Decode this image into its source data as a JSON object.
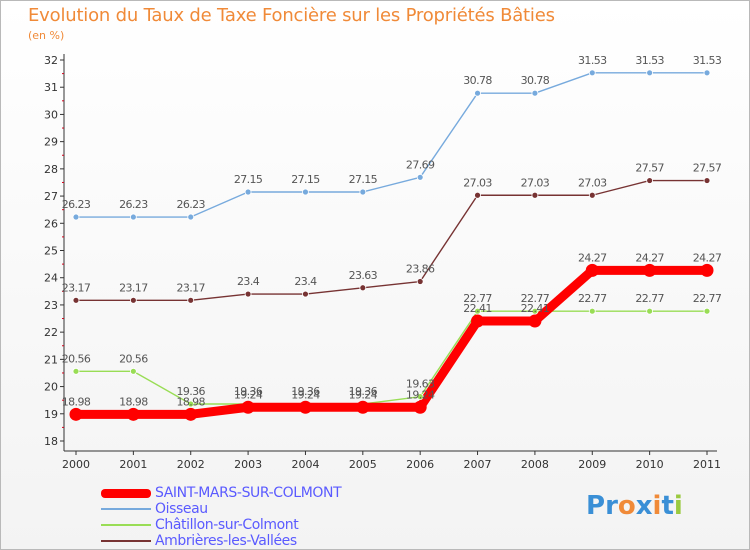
{
  "title": "Evolution du Taux de Taxe Foncière sur les Propriétés Bâties",
  "unit_label": "(en %)",
  "logo": {
    "text": "Proxiti",
    "letters": [
      {
        "ch": "P",
        "color": "#3a8fd6"
      },
      {
        "ch": "r",
        "color": "#3a8fd6"
      },
      {
        "ch": "o",
        "color": "#f08a38"
      },
      {
        "ch": "x",
        "color": "#3a8fd6"
      },
      {
        "ch": "i",
        "color": "#f08a38"
      },
      {
        "ch": "t",
        "color": "#3a8fd6"
      },
      {
        "ch": "i",
        "color": "#9ac93f"
      }
    ]
  },
  "colors": {
    "axis": "#333333",
    "grid": "#e2e2e2",
    "minor_tick": "#d0021b"
  },
  "chart_data": {
    "type": "line",
    "title": "Evolution du Taux de Taxe Foncière sur les Propriétés Bâties",
    "ylabel": "(en %)",
    "xlabel": "",
    "x": [
      "2000",
      "2001",
      "2002",
      "2003",
      "2004",
      "2005",
      "2006",
      "2007",
      "2008",
      "2009",
      "2010",
      "2011"
    ],
    "ylim": [
      18,
      32
    ],
    "yticks": [
      18,
      19,
      20,
      21,
      22,
      23,
      24,
      25,
      26,
      27,
      28,
      29,
      30,
      31,
      32
    ],
    "grid": false,
    "legend": "bottom-left",
    "series": [
      {
        "name": "SAINT-MARS-SUR-COLMONT",
        "color": "#ff0000",
        "emphasis": true,
        "values": [
          18.98,
          18.98,
          18.98,
          19.24,
          19.24,
          19.24,
          19.24,
          22.41,
          22.41,
          24.27,
          24.27,
          24.27
        ],
        "labels": [
          "18.98",
          "18.98",
          "18.98",
          "19.24",
          "19.24",
          "19.24",
          "19.24",
          "22.41",
          "22.41",
          "24.27",
          "24.27",
          "24.27"
        ]
      },
      {
        "name": "Oisseau",
        "color": "#77aadd",
        "values": [
          26.23,
          26.23,
          26.23,
          27.15,
          27.15,
          27.15,
          27.69,
          30.78,
          30.78,
          31.53,
          31.53,
          31.53
        ],
        "labels": [
          "26.23",
          "26.23",
          "26.23",
          "27.15",
          "27.15",
          "27.15",
          "27.69",
          "30.78",
          "30.78",
          "31.53",
          "31.53",
          "31.53"
        ]
      },
      {
        "name": "Châtillon-sur-Colmont",
        "color": "#99dd55",
        "values": [
          20.56,
          20.56,
          19.36,
          19.36,
          19.36,
          19.36,
          19.63,
          22.77,
          22.77,
          22.77,
          22.77,
          22.77
        ],
        "labels": [
          "20.56",
          "20.56",
          "19.36",
          "19.36",
          "19.36",
          "19.36",
          "19.63",
          "22.77",
          "22.77",
          "22.77",
          "22.77",
          "22.77"
        ]
      },
      {
        "name": "Ambrières-les-Vallées",
        "color": "#773333",
        "values": [
          23.17,
          23.17,
          23.17,
          23.4,
          23.4,
          23.63,
          23.86,
          27.03,
          27.03,
          27.03,
          27.57,
          27.57
        ],
        "labels": [
          "23.17",
          "23.17",
          "23.17",
          "23.4",
          "23.4",
          "23.63",
          "23.86",
          "27.03",
          "27.03",
          "27.03",
          "27.57",
          "27.57"
        ]
      }
    ]
  }
}
